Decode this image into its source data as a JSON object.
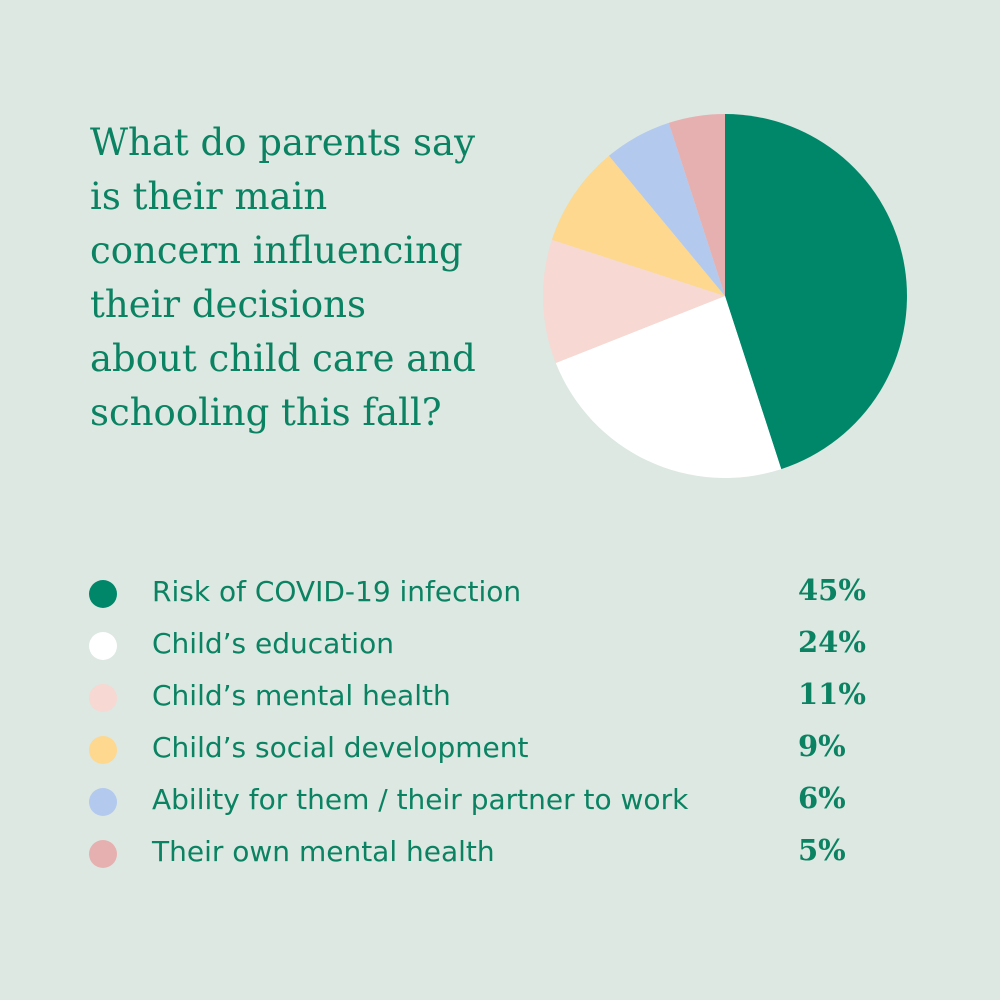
{
  "title_lines": [
    "What do parents say",
    "is their main",
    "concern influencing",
    "their decisions",
    "about child care and",
    "schooling this fall?"
  ],
  "chart_data": {
    "type": "pie",
    "title": "What do parents say is their main concern influencing their decisions about child care and schooling this fall?",
    "categories": [
      "Risk of COVID-19 infection",
      "Child’s education",
      "Child’s mental health",
      "Child’s social development",
      "Ability for them / their partner to work",
      "Their own mental health"
    ],
    "values": [
      45,
      24,
      11,
      9,
      6,
      5
    ],
    "value_labels": [
      "45%",
      "24%",
      "11%",
      "9%",
      "6%",
      "5%"
    ],
    "colors": [
      "#00876a",
      "#ffffff",
      "#f7d8d2",
      "#fdd88e",
      "#b3c9ee",
      "#e6b0b0"
    ],
    "legend_position": "bottom"
  }
}
